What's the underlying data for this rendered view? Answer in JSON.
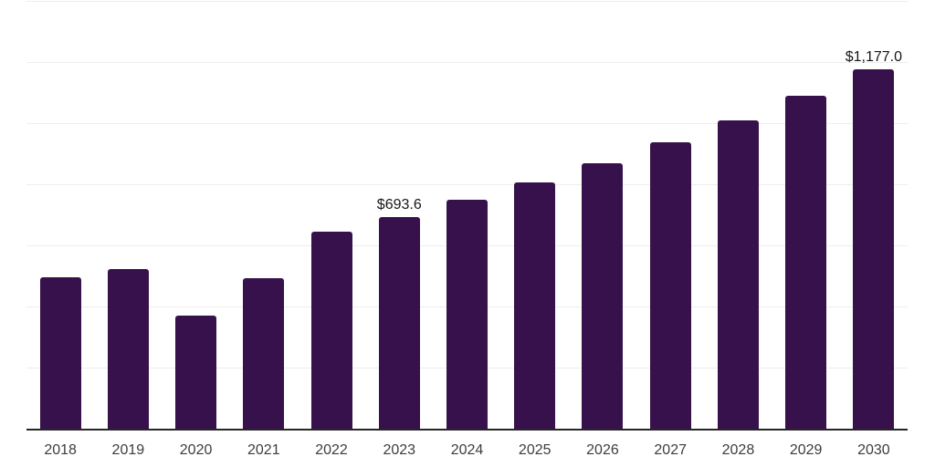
{
  "chart_data": {
    "type": "bar",
    "title": "",
    "xlabel": "",
    "ylabel": "",
    "categories": [
      "2018",
      "2019",
      "2020",
      "2021",
      "2022",
      "2023",
      "2024",
      "2025",
      "2026",
      "2027",
      "2028",
      "2029",
      "2030"
    ],
    "values": [
      496,
      522,
      370,
      492,
      646,
      693.6,
      748,
      806,
      869,
      936,
      1009,
      1090,
      1177
    ],
    "value_labels": [
      "",
      "",
      "",
      "",
      "",
      "$693.6",
      "",
      "",
      "",
      "",
      "",
      "",
      "$1,177.0"
    ],
    "ylim": [
      0,
      1400
    ],
    "grid_step": 200,
    "grid": "horizontal-only",
    "legend_position": "none",
    "y_tick_labels_shown": false,
    "colors": {
      "bar": "#37114b",
      "gridline": "#ededed",
      "axis_line": "#262626",
      "tick_label": "#3d3d3d",
      "value_label": "#161616",
      "background": "#ffffff"
    }
  }
}
